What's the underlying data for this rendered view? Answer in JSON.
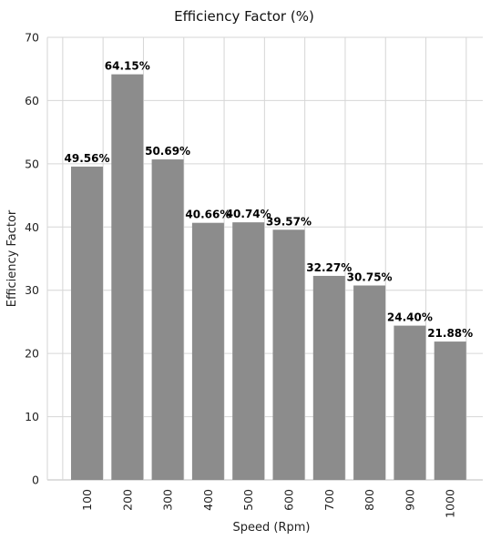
{
  "chart_data": {
    "type": "bar",
    "title": "Efficiency Factor (%)",
    "xlabel": "Speed (Rpm)",
    "ylabel": "Efficiency Factor",
    "categories": [
      "100",
      "200",
      "300",
      "400",
      "500",
      "600",
      "700",
      "800",
      "900",
      "1000"
    ],
    "values": [
      49.56,
      64.15,
      50.69,
      40.66,
      40.74,
      39.57,
      32.27,
      30.75,
      24.4,
      21.88
    ],
    "data_labels": [
      "49.56%",
      "64.15%",
      "50.69%",
      "40.66%",
      "40.74%",
      "39.57%",
      "32.27%",
      "30.75%",
      "24.40%",
      "21.88%"
    ],
    "ylim": [
      0,
      70
    ],
    "yticks": [
      0,
      10,
      20,
      30,
      40,
      50,
      60,
      70
    ],
    "grid": true,
    "bar_color": "#8c8c8c",
    "gridline_color": "#d6d6d6"
  }
}
